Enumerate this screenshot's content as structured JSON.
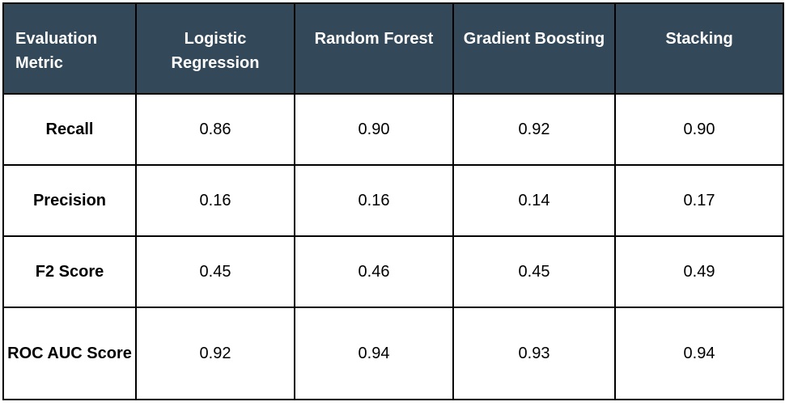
{
  "table": {
    "columns": [
      "Evaluation Metric",
      "Logistic Regression",
      "Random Forest",
      "Gradient Boosting",
      "Stacking"
    ],
    "rows": [
      {
        "metric": "Recall",
        "values": [
          "0.86",
          "0.90",
          "0.92",
          "0.90"
        ]
      },
      {
        "metric": "Precision",
        "values": [
          "0.16",
          "0.16",
          "0.14",
          "0.17"
        ]
      },
      {
        "metric": "F2 Score",
        "values": [
          "0.45",
          "0.46",
          "0.45",
          "0.49"
        ]
      },
      {
        "metric": "ROC AUC Score",
        "values": [
          "0.92",
          "0.94",
          "0.93",
          "0.94"
        ]
      }
    ]
  },
  "colors": {
    "header_bg": "#33495a",
    "header_text": "#ffffff",
    "border": "#000000"
  }
}
